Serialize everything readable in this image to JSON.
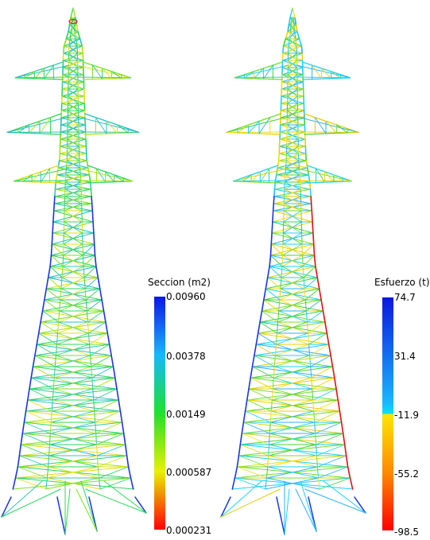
{
  "left_panel": {
    "colorbar": {
      "title": "Seccion (m2)",
      "ticks": [
        "0.00960",
        "0.00378",
        "0.00149",
        "0.000587",
        "0.000231"
      ],
      "gradient": [
        "#0a18e0",
        "#19b6ff",
        "#00e5d0",
        "#21e02a",
        "#e8f00a",
        "#ff8a00",
        "#ff0000"
      ]
    },
    "dominant_member_color": "#2bd85a",
    "leg_color": "#1936e0"
  },
  "right_panel": {
    "colorbar": {
      "title": "Esfuerzo (t)",
      "ticks": [
        "74.7",
        "31.4",
        "-11.9",
        "-55.2",
        "-98.5"
      ],
      "gradient": [
        "#0a18e0",
        "#19b6ff",
        "#00e5ff",
        "#ffe600",
        "#ff8a00",
        "#ff0000"
      ]
    },
    "dominant_member_color": "#19d2ff",
    "leg_color": "#e01010"
  }
}
